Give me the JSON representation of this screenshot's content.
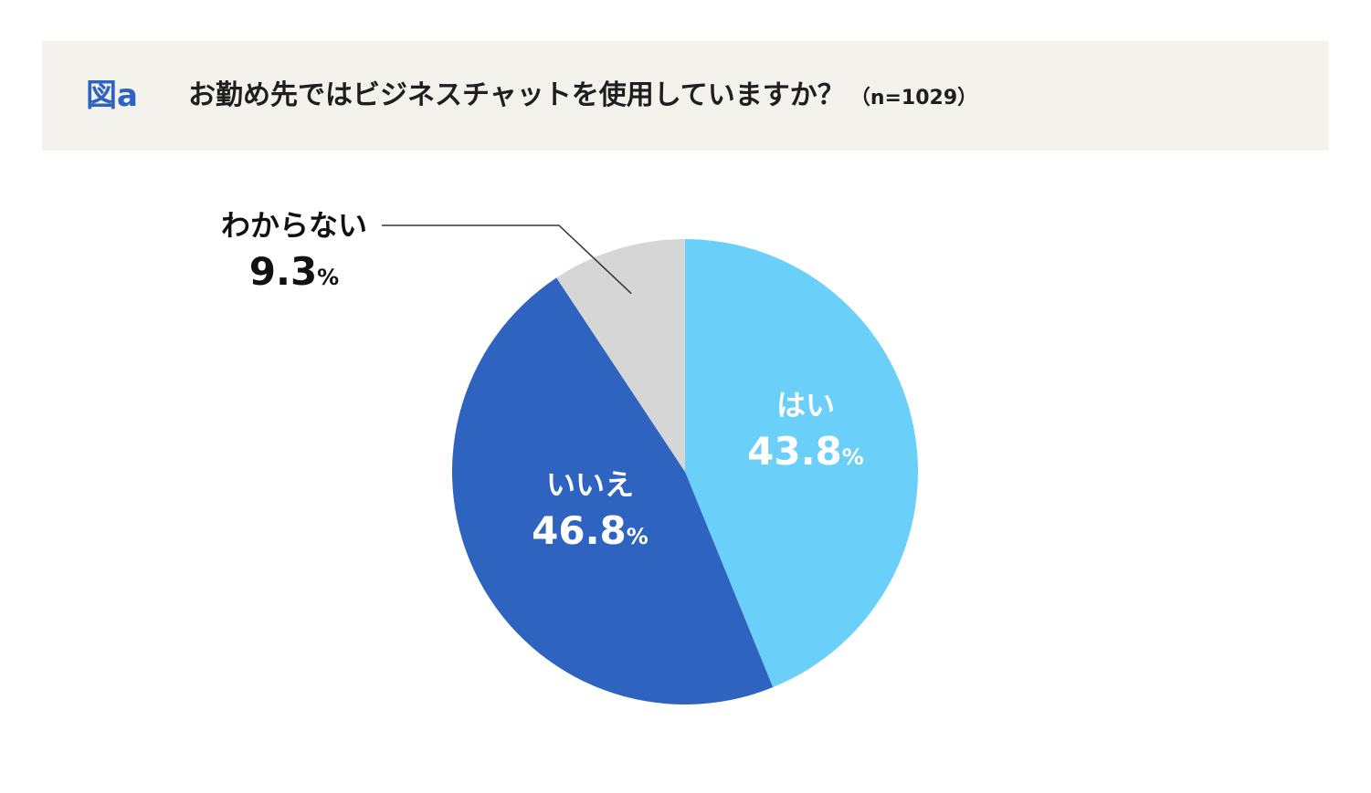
{
  "figure_label": "図a",
  "title": "お勤め先ではビジネスチャットを使用していますか？",
  "sample_size": "（n=1029）",
  "colors": {
    "header_bg": "#f4f2ed",
    "accent": "#2e63bf",
    "yes": "#6acff9",
    "no": "#2e63bf",
    "unknown": "#d6d6d6"
  },
  "chart_data": {
    "type": "pie",
    "title": "お勤め先ではビジネスチャットを使用していますか？",
    "slices": [
      {
        "label": "はい",
        "value": 43.8,
        "display": "43.8",
        "unit": "%",
        "color": "#6acff9",
        "label_color": "#ffffff"
      },
      {
        "label": "いいえ",
        "value": 46.8,
        "display": "46.8",
        "unit": "%",
        "color": "#2e63bf",
        "label_color": "#ffffff"
      },
      {
        "label": "わからない",
        "value": 9.3,
        "display": "9.3",
        "unit": "%",
        "color": "#d6d6d6",
        "label_color": "#111111"
      }
    ],
    "start": "12 o'clock",
    "direction": "clockwise"
  }
}
